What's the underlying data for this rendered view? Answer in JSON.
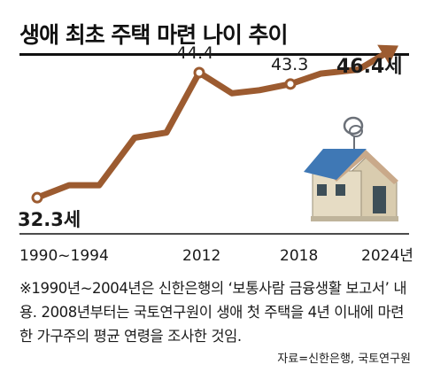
{
  "title": "생애 최초 주택 마련 나이 추이",
  "note": "※1990년~2004년은 신한은행의 ‘보통사람 금융생활 보고서’ 내용. 2008년부터는 국토연구원이 생애 첫 주택을 4년 이내에 마련한 가구주의 평균 연령을 조사한 것임.",
  "source": "자료=신한은행, 국토연구원",
  "colors": {
    "line": "#9c5b30",
    "roof": "#3f78b5",
    "wall": "#e6dcc4",
    "door": "#3e4f58",
    "ring": "#6b7078"
  },
  "icons": [
    "house-keyring-icon",
    "arrow-head-icon"
  ],
  "chart_data": {
    "type": "line",
    "title": "생애 최초 주택 마련 나이 추이",
    "xlabel": "",
    "ylabel": "",
    "x_ticks": [
      "1990~1994",
      "2012",
      "2018",
      "2024년"
    ],
    "points": [
      {
        "x": "1990",
        "y": 32.3,
        "label": "32.3세"
      },
      {
        "x": "1994",
        "y": 33.5
      },
      {
        "x": "2004",
        "y": 33.5
      },
      {
        "x": "2008",
        "y": 38.1
      },
      {
        "x": "2010",
        "y": 38.6
      },
      {
        "x": "2012",
        "y": 44.4,
        "label": "44.4"
      },
      {
        "x": "2014",
        "y": 42.4
      },
      {
        "x": "2016",
        "y": 42.7
      },
      {
        "x": "2018",
        "y": 43.3,
        "label": "43.3"
      },
      {
        "x": "2020",
        "y": 44.3
      },
      {
        "x": "2022",
        "y": 44.7
      },
      {
        "x": "2024",
        "y": 46.4,
        "label": "46.4세"
      }
    ],
    "ylim": [
      30,
      48
    ],
    "grid": false
  }
}
